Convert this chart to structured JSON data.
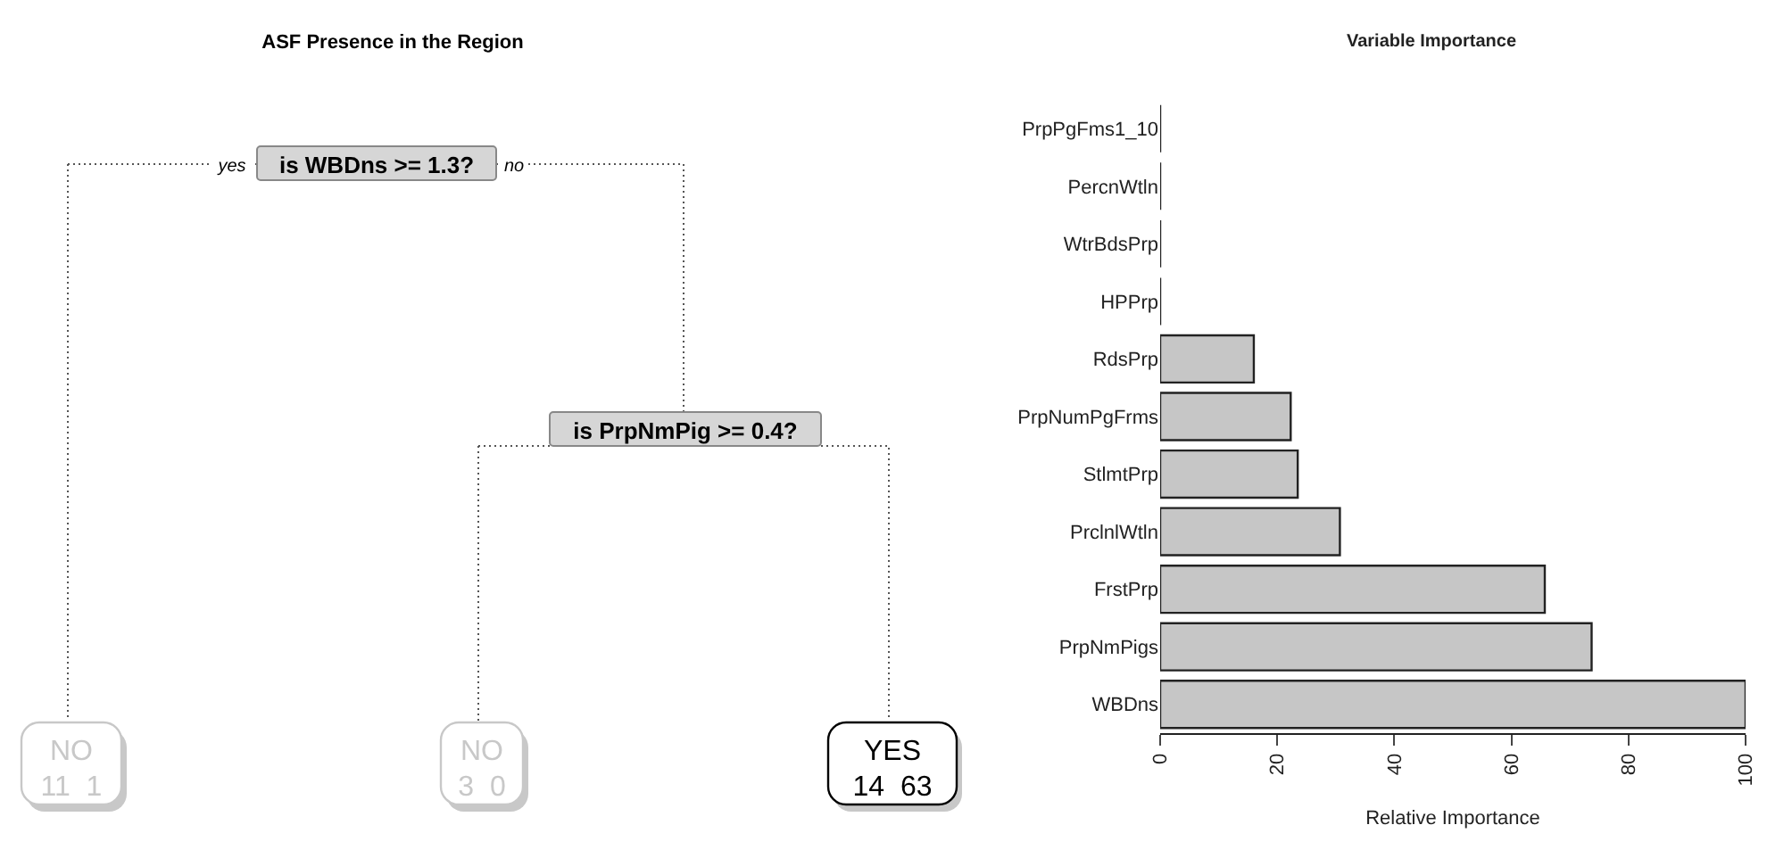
{
  "chart_data": [
    {
      "type": "other",
      "title": "ASF Presence in the Region",
      "annotations": [
        "is WBDns >= 1.3?",
        "yes",
        "no",
        "is PrpNmPig >= 0.4?",
        "NO",
        "11  1",
        "NO",
        "3  0",
        "YES",
        "14  63"
      ]
    },
    {
      "type": "bar",
      "orientation": "horizontal",
      "title": "Variable Importance",
      "xlabel": "Relative Importance",
      "categories": [
        "PrpPgFms1_10",
        "PercnWtln",
        "WtrBdsPrp",
        "HPPrp",
        "RdsPrp",
        "PrpNumPgFrms",
        "StlmtPrp",
        "PrclnlWtln",
        "FrstPrp",
        "PrpNmPigs",
        "WBDns"
      ],
      "color": "#c6c6c6",
      "values": [
        0,
        0,
        0,
        0,
        16,
        22.3,
        23.5,
        30.7,
        65.7,
        73.7,
        100
      ],
      "xlim": [
        0,
        100
      ],
      "xticks": [
        0,
        20,
        40,
        60,
        80,
        100
      ],
      "grid": false
    }
  ]
}
